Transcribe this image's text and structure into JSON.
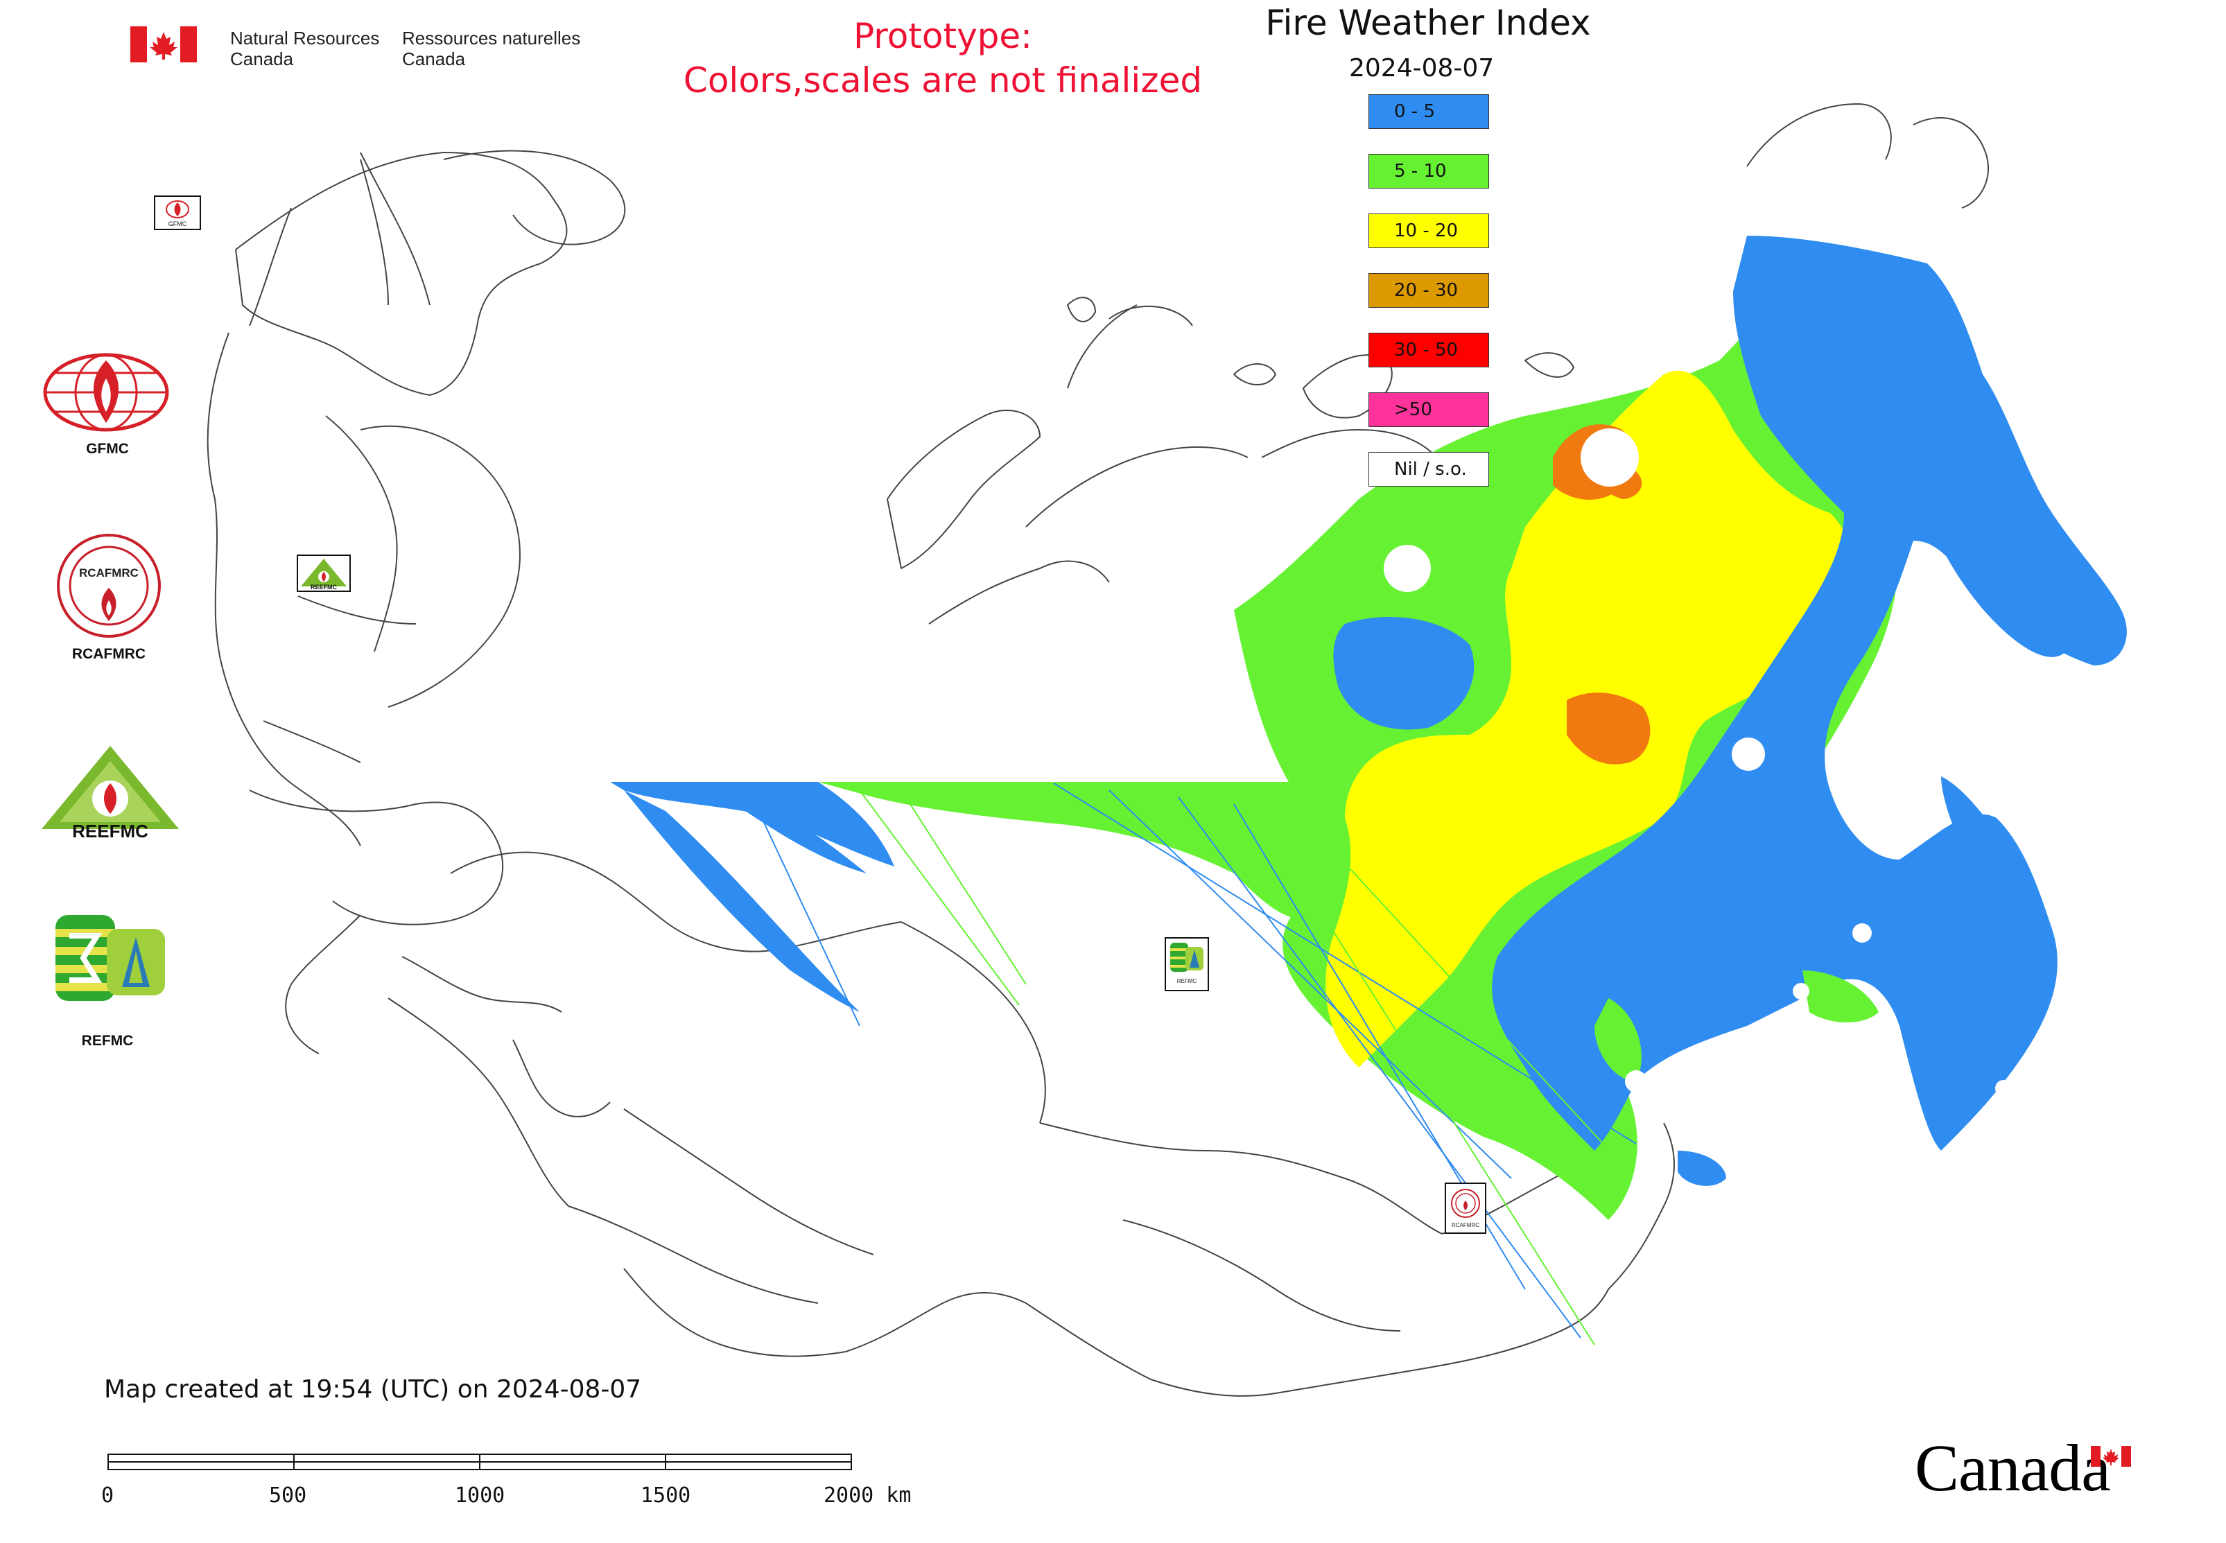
{
  "header": {
    "agency_en_line1": "Natural Resources",
    "agency_en_line2": "Canada",
    "agency_fr_line1": "Ressources naturelles",
    "agency_fr_line2": "Canada"
  },
  "prototype_notice": {
    "line1": "Prototype:",
    "line2": "Colors,scales are not finalized"
  },
  "map_title": "Fire Weather Index",
  "map_date": "2024-08-07",
  "legend": [
    {
      "label": "0 - 5",
      "color": "#2f8cf0"
    },
    {
      "label": "5 - 10",
      "color": "#66f233"
    },
    {
      "label": "10 - 20",
      "color": "#ffff00"
    },
    {
      "label": "20 - 30",
      "color": "#dd9900"
    },
    {
      "label": "30 - 50",
      "color": "#ff0000"
    },
    {
      "label": ">50",
      "color": "#ff3399"
    },
    {
      "label": "Nil / s.o.",
      "color": "#ffffff"
    }
  ],
  "side_logos": [
    {
      "label": "GFMC",
      "icon": "gfmc-logo-icon"
    },
    {
      "label": "RCAFMRC",
      "icon": "rcafmrc-logo-icon"
    },
    {
      "label": "",
      "icon": "reefmc-logo-icon"
    },
    {
      "label": "REFMC",
      "icon": "refmc-logo-icon"
    }
  ],
  "reefmc_wordmark": "REEFMC",
  "rcafmrc_seal_text": "RCAFMRC",
  "map_markers": [
    {
      "label": "GFMC",
      "icon": "gfmc-marker-icon"
    },
    {
      "label": "REEFMC",
      "icon": "reefmc-marker-icon"
    },
    {
      "label": "REFMC",
      "icon": "refmc-marker-icon"
    },
    {
      "label": "RCAFMRC",
      "icon": "rcafmrc-marker-icon"
    }
  ],
  "created_text": "Map created at 19:54 (UTC) on 2024-08-07",
  "scale_bar": {
    "labels": [
      "0",
      "500",
      "1000",
      "1500",
      "2000 km"
    ]
  },
  "wordmark": "Canada",
  "colors": {
    "canada_red": "#e31b23",
    "prototype_red": "#ee1133",
    "border_line": "#444444"
  }
}
